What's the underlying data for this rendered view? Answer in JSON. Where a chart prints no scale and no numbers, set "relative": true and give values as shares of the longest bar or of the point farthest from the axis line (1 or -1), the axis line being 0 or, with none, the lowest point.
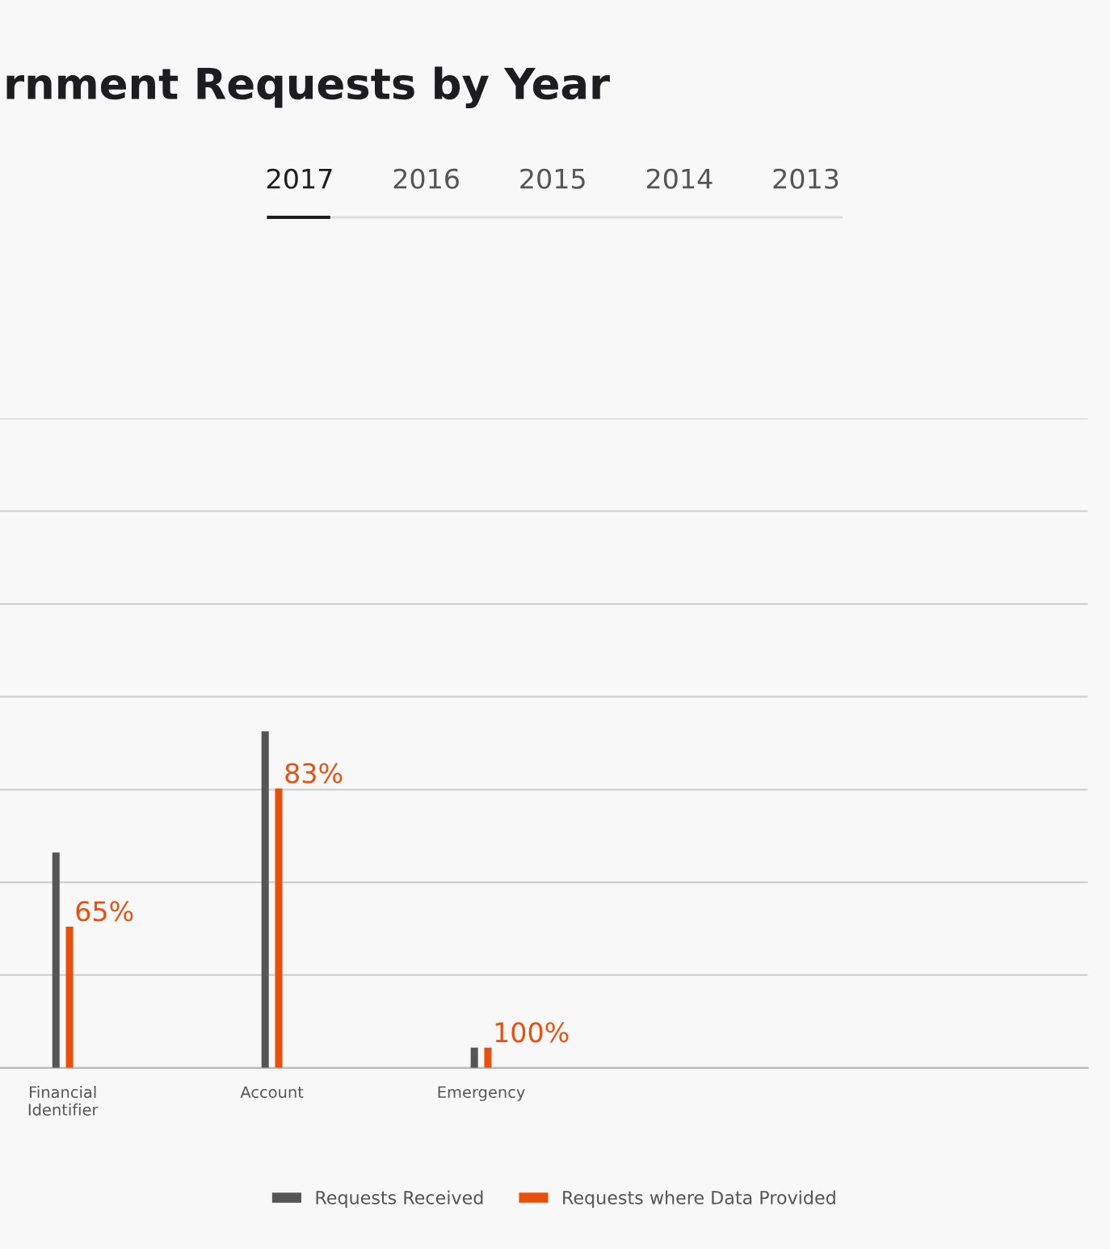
{
  "chart_data": {
    "type": "bar",
    "title": "rnment Requests by Year",
    "annotations": [
      "2017",
      "2016",
      "2015",
      "2014",
      "2013",
      {
        "text": "65%",
        "x": "Financial\nIdentifier",
        "y": 0.42
      },
      {
        "text": "83%",
        "x": "Account",
        "y": 0.83
      },
      {
        "text": "100%",
        "x": "Emergency",
        "y": 0.06
      }
    ],
    "categories": [
      "Financial\nIdentifier",
      "Account",
      "Emergency"
    ],
    "relative": true,
    "series": [
      {
        "name": "Requests Received",
        "color": "#555555",
        "values": [
          0.64,
          1,
          0.06
        ]
      },
      {
        "name": "Requests where Data Provided",
        "color": "#e8500e",
        "values": [
          0.42,
          0.83,
          0.06
        ]
      }
    ],
    "grid": "y",
    "legend": "bottom"
  }
}
